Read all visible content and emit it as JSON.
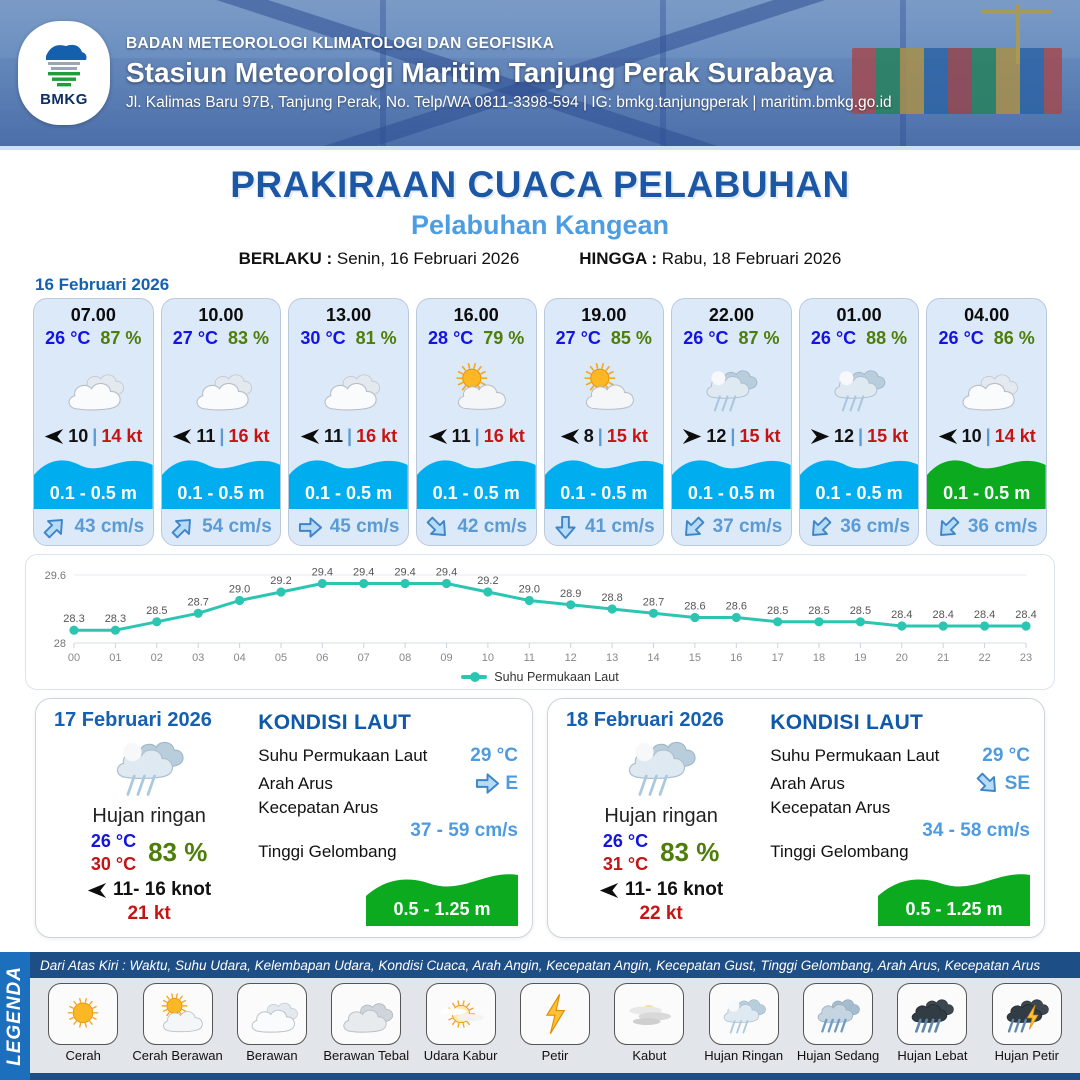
{
  "header": {
    "logo_label": "BMKG",
    "agency": "BADAN METEOROLOGI KLIMATOLOGI DAN GEOFISIKA",
    "station": "Stasiun Meteorologi Maritim Tanjung Perak Surabaya",
    "address": "Jl. Kalimas Baru 97B, Tanjung Perak, No. Telp/WA 0811-3398-594 | IG: bmkg.tanjungperak | maritim.bmkg.go.id"
  },
  "banner": {
    "main_title": "PRAKIRAAN CUACA PELABUHAN",
    "port_name": "Pelabuhan Kangean",
    "valid_from_label": "BERLAKU :",
    "valid_from": "Senin, 16 Februari 2026",
    "valid_to_label": "HINGGA :",
    "valid_to": "Rabu, 18 Februari 2026"
  },
  "forecast": {
    "date": "16 Februari 2026",
    "wind_sep": "|",
    "cards": [
      {
        "time": "07.00",
        "temp": "26 °C",
        "humidity": "87 %",
        "icon": "berawan",
        "wind_speed": "10",
        "wind_gust": "14 kt",
        "wind_dir": "W",
        "wave_height": "0.1 - 0.5 m",
        "wave_color": "#00aeef",
        "current_speed": "43 cm/s",
        "current_dir": "NE"
      },
      {
        "time": "10.00",
        "temp": "27 °C",
        "humidity": "83 %",
        "icon": "berawan",
        "wind_speed": "11",
        "wind_gust": "16 kt",
        "wind_dir": "W",
        "wave_height": "0.1 - 0.5 m",
        "wave_color": "#00aeef",
        "current_speed": "54 cm/s",
        "current_dir": "NE"
      },
      {
        "time": "13.00",
        "temp": "30 °C",
        "humidity": "81 %",
        "icon": "berawan",
        "wind_speed": "11",
        "wind_gust": "16 kt",
        "wind_dir": "W",
        "wave_height": "0.1 - 0.5 m",
        "wave_color": "#00aeef",
        "current_speed": "45 cm/s",
        "current_dir": "E"
      },
      {
        "time": "16.00",
        "temp": "28 °C",
        "humidity": "79 %",
        "icon": "cerah-berawan",
        "wind_speed": "11",
        "wind_gust": "16 kt",
        "wind_dir": "W",
        "wave_height": "0.1 - 0.5 m",
        "wave_color": "#00aeef",
        "current_speed": "42 cm/s",
        "current_dir": "SE"
      },
      {
        "time": "19.00",
        "temp": "27 °C",
        "humidity": "85 %",
        "icon": "cerah-berawan",
        "wind_speed": "8",
        "wind_gust": "15 kt",
        "wind_dir": "W",
        "wave_height": "0.1 - 0.5 m",
        "wave_color": "#00aeef",
        "current_speed": "41 cm/s",
        "current_dir": "S"
      },
      {
        "time": "22.00",
        "temp": "26 °C",
        "humidity": "87 %",
        "icon": "hujan-ringan",
        "wind_speed": "12",
        "wind_gust": "15 kt",
        "wind_dir": "E",
        "wave_height": "0.1 - 0.5 m",
        "wave_color": "#00aeef",
        "current_speed": "37 cm/s",
        "current_dir": "SW"
      },
      {
        "time": "01.00",
        "temp": "26 °C",
        "humidity": "88 %",
        "icon": "hujan-ringan",
        "wind_speed": "12",
        "wind_gust": "15 kt",
        "wind_dir": "E",
        "wave_height": "0.1 - 0.5 m",
        "wave_color": "#00aeef",
        "current_speed": "36 cm/s",
        "current_dir": "SW"
      },
      {
        "time": "04.00",
        "temp": "26 °C",
        "humidity": "86 %",
        "icon": "berawan",
        "wind_speed": "10",
        "wind_gust": "14 kt",
        "wind_dir": "W",
        "wave_height": "0.1 - 0.5 m",
        "wave_color": "#0cab1f",
        "current_speed": "36 cm/s",
        "current_dir": "SW"
      }
    ]
  },
  "chart_data": {
    "type": "line",
    "x": [
      "00",
      "01",
      "02",
      "03",
      "04",
      "05",
      "06",
      "07",
      "08",
      "09",
      "10",
      "11",
      "12",
      "13",
      "14",
      "15",
      "16",
      "17",
      "18",
      "19",
      "20",
      "21",
      "22",
      "23"
    ],
    "series": [
      {
        "name": "Suhu Permukaan Laut",
        "values": [
          28.3,
          28.3,
          28.5,
          28.7,
          29.0,
          29.2,
          29.4,
          29.4,
          29.4,
          29.4,
          29.2,
          29.0,
          28.9,
          28.8,
          28.7,
          28.6,
          28.6,
          28.5,
          28.5,
          28.5,
          28.4,
          28.4,
          28.4,
          28.4
        ]
      }
    ],
    "ylim": [
      28,
      29.6
    ],
    "yticks": [
      "29.6",
      "28"
    ],
    "line_color": "#2cc5b2",
    "grid": true,
    "legend_position": "bottom"
  },
  "sea_labels": {
    "title": "KONDISI LAUT",
    "sst": "Suhu Permukaan Laut",
    "dir": "Arah Arus",
    "speed": "Kecepatan Arus",
    "wave": "Tinggi Gelombang"
  },
  "days": [
    {
      "date": "17 Februari 2026",
      "icon": "hujan-ringan",
      "condition": "Hujan ringan",
      "temp_min": "26 °C",
      "temp_max": "30 °C",
      "humidity": "83 %",
      "wind_label": "11- 16 knot",
      "wind_dir": "W",
      "gust": "21 kt",
      "sst": "29 °C",
      "current_dir": "E",
      "current_dir_name": "E",
      "current_speed": "37 - 59 cm/s",
      "wave_height": "0.5 - 1.25 m",
      "wave_color": "#0cab1f"
    },
    {
      "date": "18 Februari 2026",
      "icon": "hujan-ringan",
      "condition": "Hujan ringan",
      "temp_min": "26 °C",
      "temp_max": "31 °C",
      "humidity": "83 %",
      "wind_label": "11- 16 knot",
      "wind_dir": "W",
      "gust": "22 kt",
      "sst": "29 °C",
      "current_dir": "SE",
      "current_dir_name": "SE",
      "current_speed": "34 - 58 cm/s",
      "wave_height": "0.5 - 1.25 m",
      "wave_color": "#0cab1f"
    }
  ],
  "legend": {
    "title": "LEGENDA",
    "note": "Dari Atas Kiri : Waktu, Suhu Udara, Kelembapan Udara, Kondisi Cuaca, Arah Angin, Kecepatan Angin, Kecepatan Gust, Tinggi Gelombang, Arah Arus, Kecepatan Arus",
    "items": [
      {
        "label": "Cerah",
        "icon": "cerah"
      },
      {
        "label": "Cerah Berawan",
        "icon": "cerah-berawan"
      },
      {
        "label": "Berawan",
        "icon": "berawan"
      },
      {
        "label": "Berawan Tebal",
        "icon": "berawan-tebal"
      },
      {
        "label": "Udara Kabur",
        "icon": "udara-kabur"
      },
      {
        "label": "Petir",
        "icon": "petir"
      },
      {
        "label": "Kabut",
        "icon": "kabut"
      },
      {
        "label": "Hujan Ringan",
        "icon": "hujan-ringan"
      },
      {
        "label": "Hujan Sedang",
        "icon": "hujan-sedang"
      },
      {
        "label": "Hujan Lebat",
        "icon": "hujan-lebat"
      },
      {
        "label": "Hujan Petir",
        "icon": "hujan-petir"
      }
    ]
  }
}
